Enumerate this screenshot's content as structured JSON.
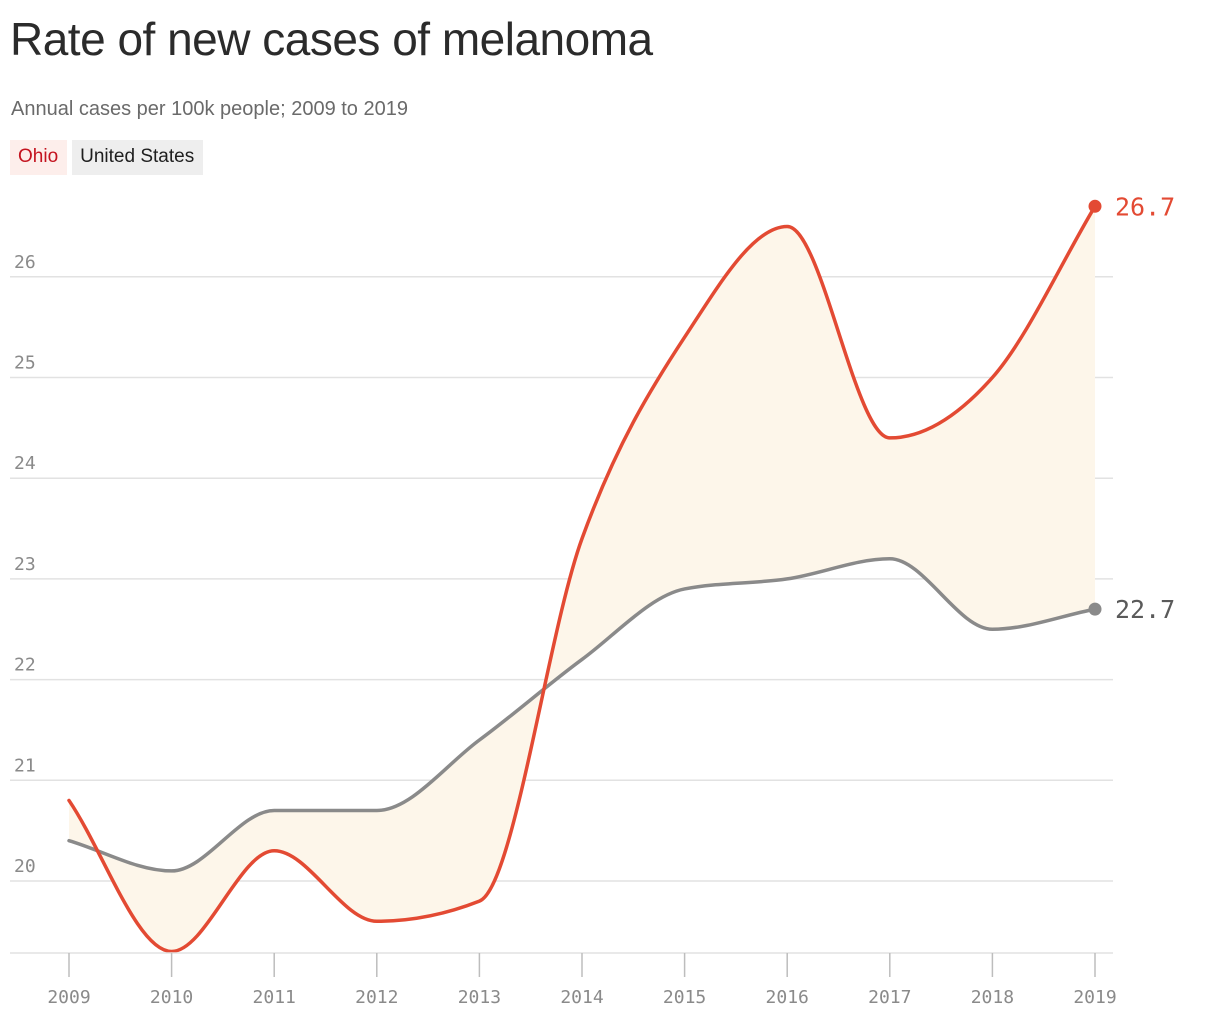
{
  "header": {
    "title": "Rate of new cases of melanoma",
    "subtitle": "Annual cases per 100k people; 2009 to 2019"
  },
  "legend": {
    "ohio_label": "Ohio",
    "us_label": "United States"
  },
  "colors": {
    "ohio": "#e34a33",
    "united_states": "#8a8a8a",
    "fill": "#fdf6ea",
    "grid": "#e2e2e2"
  },
  "chart_data": {
    "type": "line",
    "title": "Rate of new cases of melanoma",
    "subtitle": "Annual cases per 100k people; 2009 to 2019",
    "x": [
      "2009",
      "2010",
      "2011",
      "2012",
      "2013",
      "2014",
      "2015",
      "2016",
      "2017",
      "2018",
      "2019"
    ],
    "series": [
      {
        "name": "Ohio",
        "values": [
          20.8,
          19.3,
          20.3,
          19.6,
          19.8,
          23.4,
          25.4,
          26.5,
          24.4,
          25.0,
          26.7
        ]
      },
      {
        "name": "United States",
        "values": [
          20.4,
          20.1,
          20.7,
          20.7,
          21.4,
          22.2,
          22.9,
          23.0,
          23.2,
          22.5,
          22.7
        ]
      }
    ],
    "end_labels": {
      "ohio": "26.7",
      "united_states": "22.7"
    },
    "yticks": [
      "20",
      "21",
      "22",
      "23",
      "24",
      "25",
      "26"
    ],
    "ylim": [
      19.3,
      26.7
    ],
    "grid": true,
    "legend_position": "top-left",
    "fill_between_series": true
  }
}
